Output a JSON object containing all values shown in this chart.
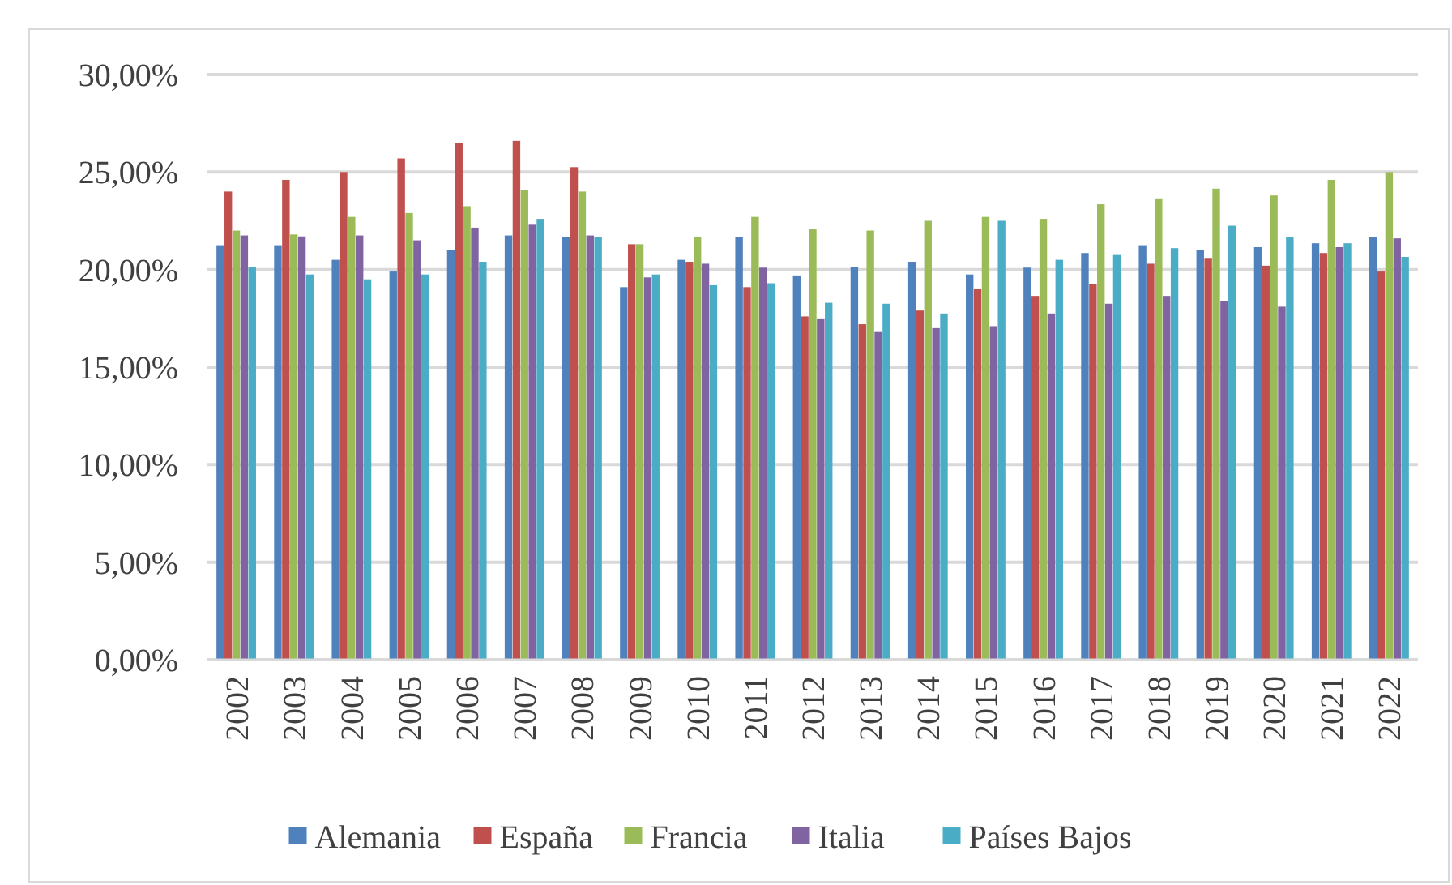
{
  "chart_data": {
    "type": "bar",
    "categories": [
      "2002",
      "2003",
      "2004",
      "2005",
      "2006",
      "2007",
      "2008",
      "2009",
      "2010",
      "2011",
      "2012",
      "2013",
      "2014",
      "2015",
      "2016",
      "2017",
      "2018",
      "2019",
      "2020",
      "2021",
      "2022"
    ],
    "series": [
      {
        "name": "Alemania",
        "color": "#4f81bd",
        "values": [
          21.25,
          21.25,
          20.5,
          19.9,
          21.0,
          21.75,
          21.65,
          19.1,
          20.5,
          21.65,
          19.7,
          20.15,
          20.4,
          19.75,
          20.1,
          20.85,
          21.25,
          21.0,
          21.15,
          21.35,
          21.65
        ]
      },
      {
        "name": "España",
        "color": "#c0504d",
        "values": [
          24.0,
          24.6,
          25.0,
          25.7,
          26.5,
          26.6,
          25.25,
          21.3,
          20.4,
          19.1,
          17.6,
          17.2,
          17.9,
          19.0,
          18.65,
          19.25,
          20.3,
          20.6,
          20.2,
          20.85,
          19.9
        ]
      },
      {
        "name": "Francia",
        "color": "#9bbb59",
        "values": [
          22.0,
          21.8,
          22.7,
          22.9,
          23.25,
          24.1,
          24.0,
          21.3,
          21.65,
          22.7,
          22.1,
          22.0,
          22.5,
          22.7,
          22.6,
          23.35,
          23.65,
          24.15,
          23.8,
          24.6,
          25.0
        ]
      },
      {
        "name": "Italia",
        "color": "#8064a2",
        "values": [
          21.75,
          21.7,
          21.75,
          21.5,
          22.15,
          22.3,
          21.75,
          19.6,
          20.3,
          20.1,
          17.5,
          16.8,
          17.0,
          17.1,
          17.75,
          18.25,
          18.65,
          18.4,
          18.1,
          21.15,
          21.6
        ]
      },
      {
        "name": "Países Bajos",
        "color": "#4bacc6",
        "values": [
          20.15,
          19.75,
          19.5,
          19.75,
          20.4,
          22.6,
          21.65,
          19.75,
          19.2,
          19.3,
          18.3,
          18.25,
          17.75,
          22.5,
          20.5,
          20.75,
          21.1,
          22.25,
          21.65,
          21.35,
          20.65
        ]
      }
    ],
    "ylim": [
      0,
      30
    ],
    "yticks": [
      {
        "value": 0,
        "label": "0,00%"
      },
      {
        "value": 5,
        "label": "5,00%"
      },
      {
        "value": 10,
        "label": "10,00%"
      },
      {
        "value": 15,
        "label": "15,00%"
      },
      {
        "value": 20,
        "label": "20,00%"
      },
      {
        "value": 25,
        "label": "25,00%"
      },
      {
        "value": 30,
        "label": "30,00%"
      }
    ],
    "grid": "y",
    "legend": "bottom"
  }
}
